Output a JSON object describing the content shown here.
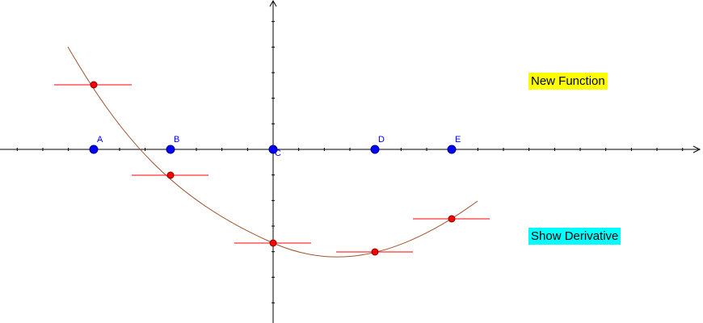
{
  "buttons": {
    "new_function": {
      "label": "New Function",
      "color": "#ffff00"
    },
    "show_derivative": {
      "label": "Show Derivative",
      "color": "#00ffff"
    }
  },
  "points": [
    {
      "label": "A"
    },
    {
      "label": "B"
    },
    {
      "label": "C"
    },
    {
      "label": "D"
    },
    {
      "label": "E"
    }
  ],
  "colors": {
    "axis": "#000000",
    "curve": "#a0522d",
    "tangent": "#ff0000",
    "axis_point": "#0000ff",
    "curve_point": "#ff0000",
    "point_label": "#0000ff"
  }
}
